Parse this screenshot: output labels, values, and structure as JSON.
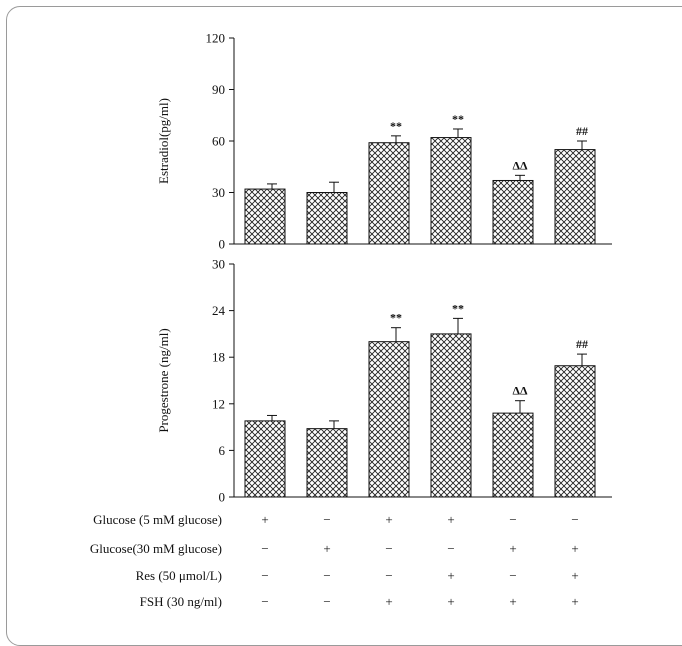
{
  "chart_data": [
    {
      "type": "bar",
      "ylabel": "Estradiol(pg/ml)",
      "ylim": [
        0,
        120
      ],
      "yticks": [
        0,
        30,
        60,
        90,
        120
      ],
      "values": [
        32,
        30,
        59,
        62,
        37,
        55
      ],
      "errors": [
        3,
        6,
        4,
        5,
        3,
        5
      ],
      "annotations": [
        "",
        "",
        "**",
        "**",
        "ΔΔ",
        "##"
      ]
    },
    {
      "type": "bar",
      "ylabel": "Progestrone (ng/ml)",
      "ylim": [
        0,
        30
      ],
      "yticks": [
        0,
        6,
        12,
        18,
        24,
        30
      ],
      "values": [
        9.8,
        8.8,
        20.0,
        21.0,
        10.8,
        16.9
      ],
      "errors": [
        0.7,
        1.0,
        1.8,
        2.0,
        1.6,
        1.5
      ],
      "annotations": [
        "",
        "",
        "**",
        "**",
        "ΔΔ",
        "##"
      ]
    }
  ],
  "conditions": [
    {
      "label": "Glucose (5 mM glucose)",
      "signs": [
        "+",
        "−",
        "+",
        "+",
        "−",
        "−"
      ]
    },
    {
      "label": "Glucose(30 mM glucose)",
      "signs": [
        "−",
        "+",
        "−",
        "−",
        "+",
        "+"
      ]
    },
    {
      "label": "Res (50 μmol/L)",
      "signs": [
        "−",
        "−",
        "−",
        "+",
        "−",
        "+"
      ]
    },
    {
      "label": "FSH (30 ng/ml)",
      "signs": [
        "−",
        "−",
        "+",
        "+",
        "+",
        "+"
      ]
    }
  ]
}
